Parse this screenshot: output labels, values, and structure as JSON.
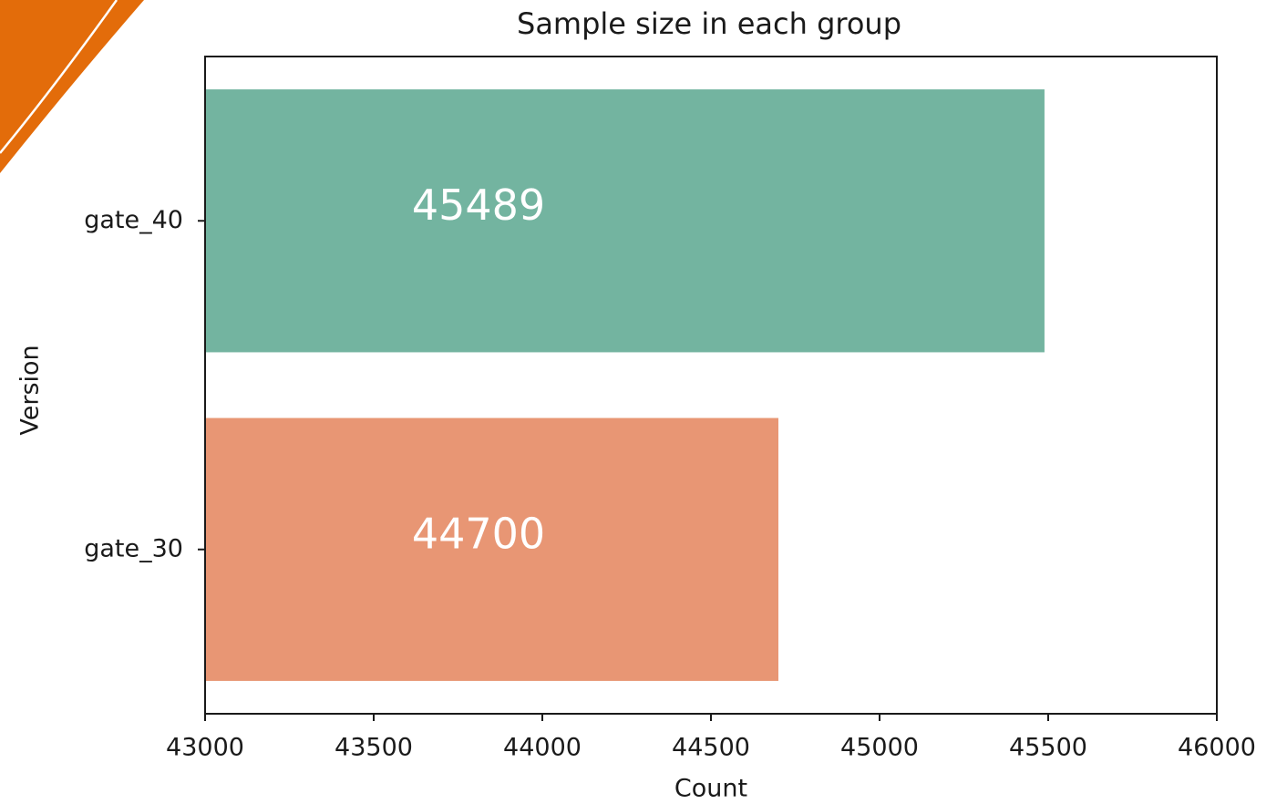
{
  "chart_data": {
    "type": "bar",
    "orientation": "horizontal",
    "title": "Sample size in each group",
    "xlabel": "Count",
    "ylabel": "Version",
    "categories": [
      "gate_40",
      "gate_30"
    ],
    "values": [
      45489,
      44700
    ],
    "colors": [
      "#73b4a0",
      "#e89674"
    ],
    "xlim": [
      43000,
      46000
    ],
    "xticks": [
      43000,
      43500,
      44000,
      44500,
      45000,
      45500,
      46000
    ],
    "grid": false
  }
}
